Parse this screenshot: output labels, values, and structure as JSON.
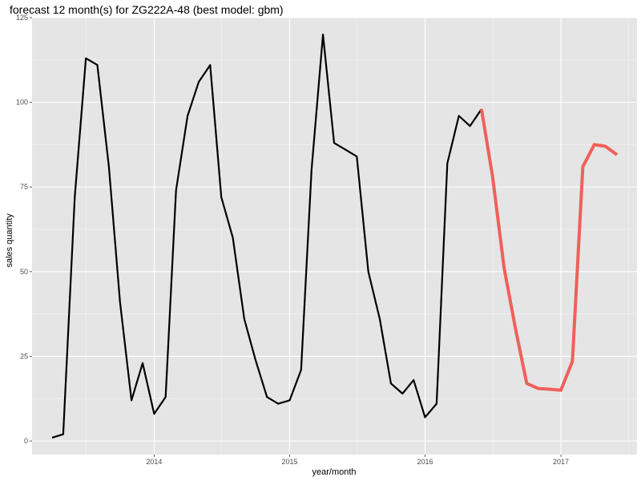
{
  "chart_data": {
    "type": "line",
    "title": "forecast 12 month(s) for ZG222A-48 (best model: gbm)",
    "xlabel": "year/month",
    "ylabel": "sales quantity",
    "xlim": [
      "2013-02-06",
      "2017-07-25"
    ],
    "ylim": [
      -4,
      125
    ],
    "x_ticks": [
      {
        "date": "2014-01-01",
        "label": "2014"
      },
      {
        "date": "2015-01-01",
        "label": "2015"
      },
      {
        "date": "2016-01-01",
        "label": "2016"
      },
      {
        "date": "2017-01-01",
        "label": "2017"
      }
    ],
    "y_ticks": [
      0,
      25,
      50,
      75,
      100,
      125
    ],
    "grid": true,
    "series": [
      {
        "color": "#000000",
        "x": [
          "2013-04",
          "2013-05",
          "2013-06",
          "2013-07",
          "2013-08",
          "2013-09",
          "2013-10",
          "2013-11",
          "2013-12",
          "2014-01",
          "2014-02",
          "2014-03",
          "2014-04",
          "2014-05",
          "2014-06",
          "2014-07",
          "2014-08",
          "2014-09",
          "2014-10",
          "2014-11",
          "2014-12",
          "2015-01",
          "2015-02",
          "2015-03",
          "2015-04",
          "2015-05",
          "2015-06",
          "2015-07",
          "2015-08",
          "2015-09",
          "2015-10",
          "2015-11",
          "2015-12",
          "2016-01",
          "2016-02",
          "2016-03",
          "2016-04",
          "2016-05",
          "2016-06"
        ],
        "values": [
          1,
          2,
          72,
          113,
          111,
          81,
          41,
          12,
          23,
          8,
          13,
          74,
          96,
          106,
          111,
          72,
          60,
          36,
          24,
          13,
          11,
          12,
          21,
          80,
          120,
          88,
          86,
          84,
          50,
          36,
          17,
          14,
          18,
          7,
          11,
          82,
          96,
          93,
          98
        ]
      },
      {
        "color": "#f0605a",
        "x": [
          "2016-06",
          "2016-07",
          "2016-08",
          "2016-09",
          "2016-10",
          "2016-11",
          "2016-12",
          "2017-01",
          "2017-02",
          "2017-03",
          "2017-04",
          "2017-05",
          "2017-06"
        ],
        "values": [
          98,
          78,
          51,
          33,
          17,
          15.5,
          15.3,
          15,
          23.5,
          81,
          87.5,
          87,
          84.5
        ]
      }
    ]
  }
}
